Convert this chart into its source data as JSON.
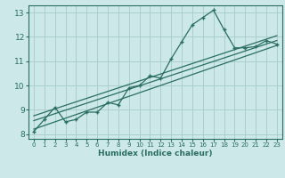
{
  "xlabel": "Humidex (Indice chaleur)",
  "ylabel": "",
  "bg_color": "#cce8e8",
  "grid_color": "#aacece",
  "line_color": "#2a6e62",
  "xlim": [
    -0.5,
    23.5
  ],
  "ylim": [
    7.8,
    13.3
  ],
  "xticks": [
    0,
    1,
    2,
    3,
    4,
    5,
    6,
    7,
    8,
    9,
    10,
    11,
    12,
    13,
    14,
    15,
    16,
    17,
    18,
    19,
    20,
    21,
    22,
    23
  ],
  "yticks": [
    8,
    9,
    10,
    11,
    12,
    13
  ],
  "main_x": [
    0,
    1,
    2,
    3,
    4,
    5,
    6,
    7,
    8,
    9,
    10,
    11,
    12,
    13,
    14,
    15,
    16,
    17,
    18,
    19,
    20,
    21,
    22,
    23
  ],
  "main_y": [
    8.1,
    8.6,
    9.1,
    8.5,
    8.6,
    8.9,
    8.9,
    9.3,
    9.2,
    9.9,
    10.0,
    10.4,
    10.3,
    11.1,
    11.8,
    12.5,
    12.8,
    13.1,
    12.3,
    11.55,
    11.55,
    11.6,
    11.85,
    11.7
  ],
  "line1_x": [
    0,
    23
  ],
  "line1_y": [
    8.2,
    11.65
  ],
  "line2_x": [
    0,
    23
  ],
  "line2_y": [
    8.55,
    11.85
  ],
  "line3_x": [
    0,
    23
  ],
  "line3_y": [
    8.75,
    12.05
  ]
}
